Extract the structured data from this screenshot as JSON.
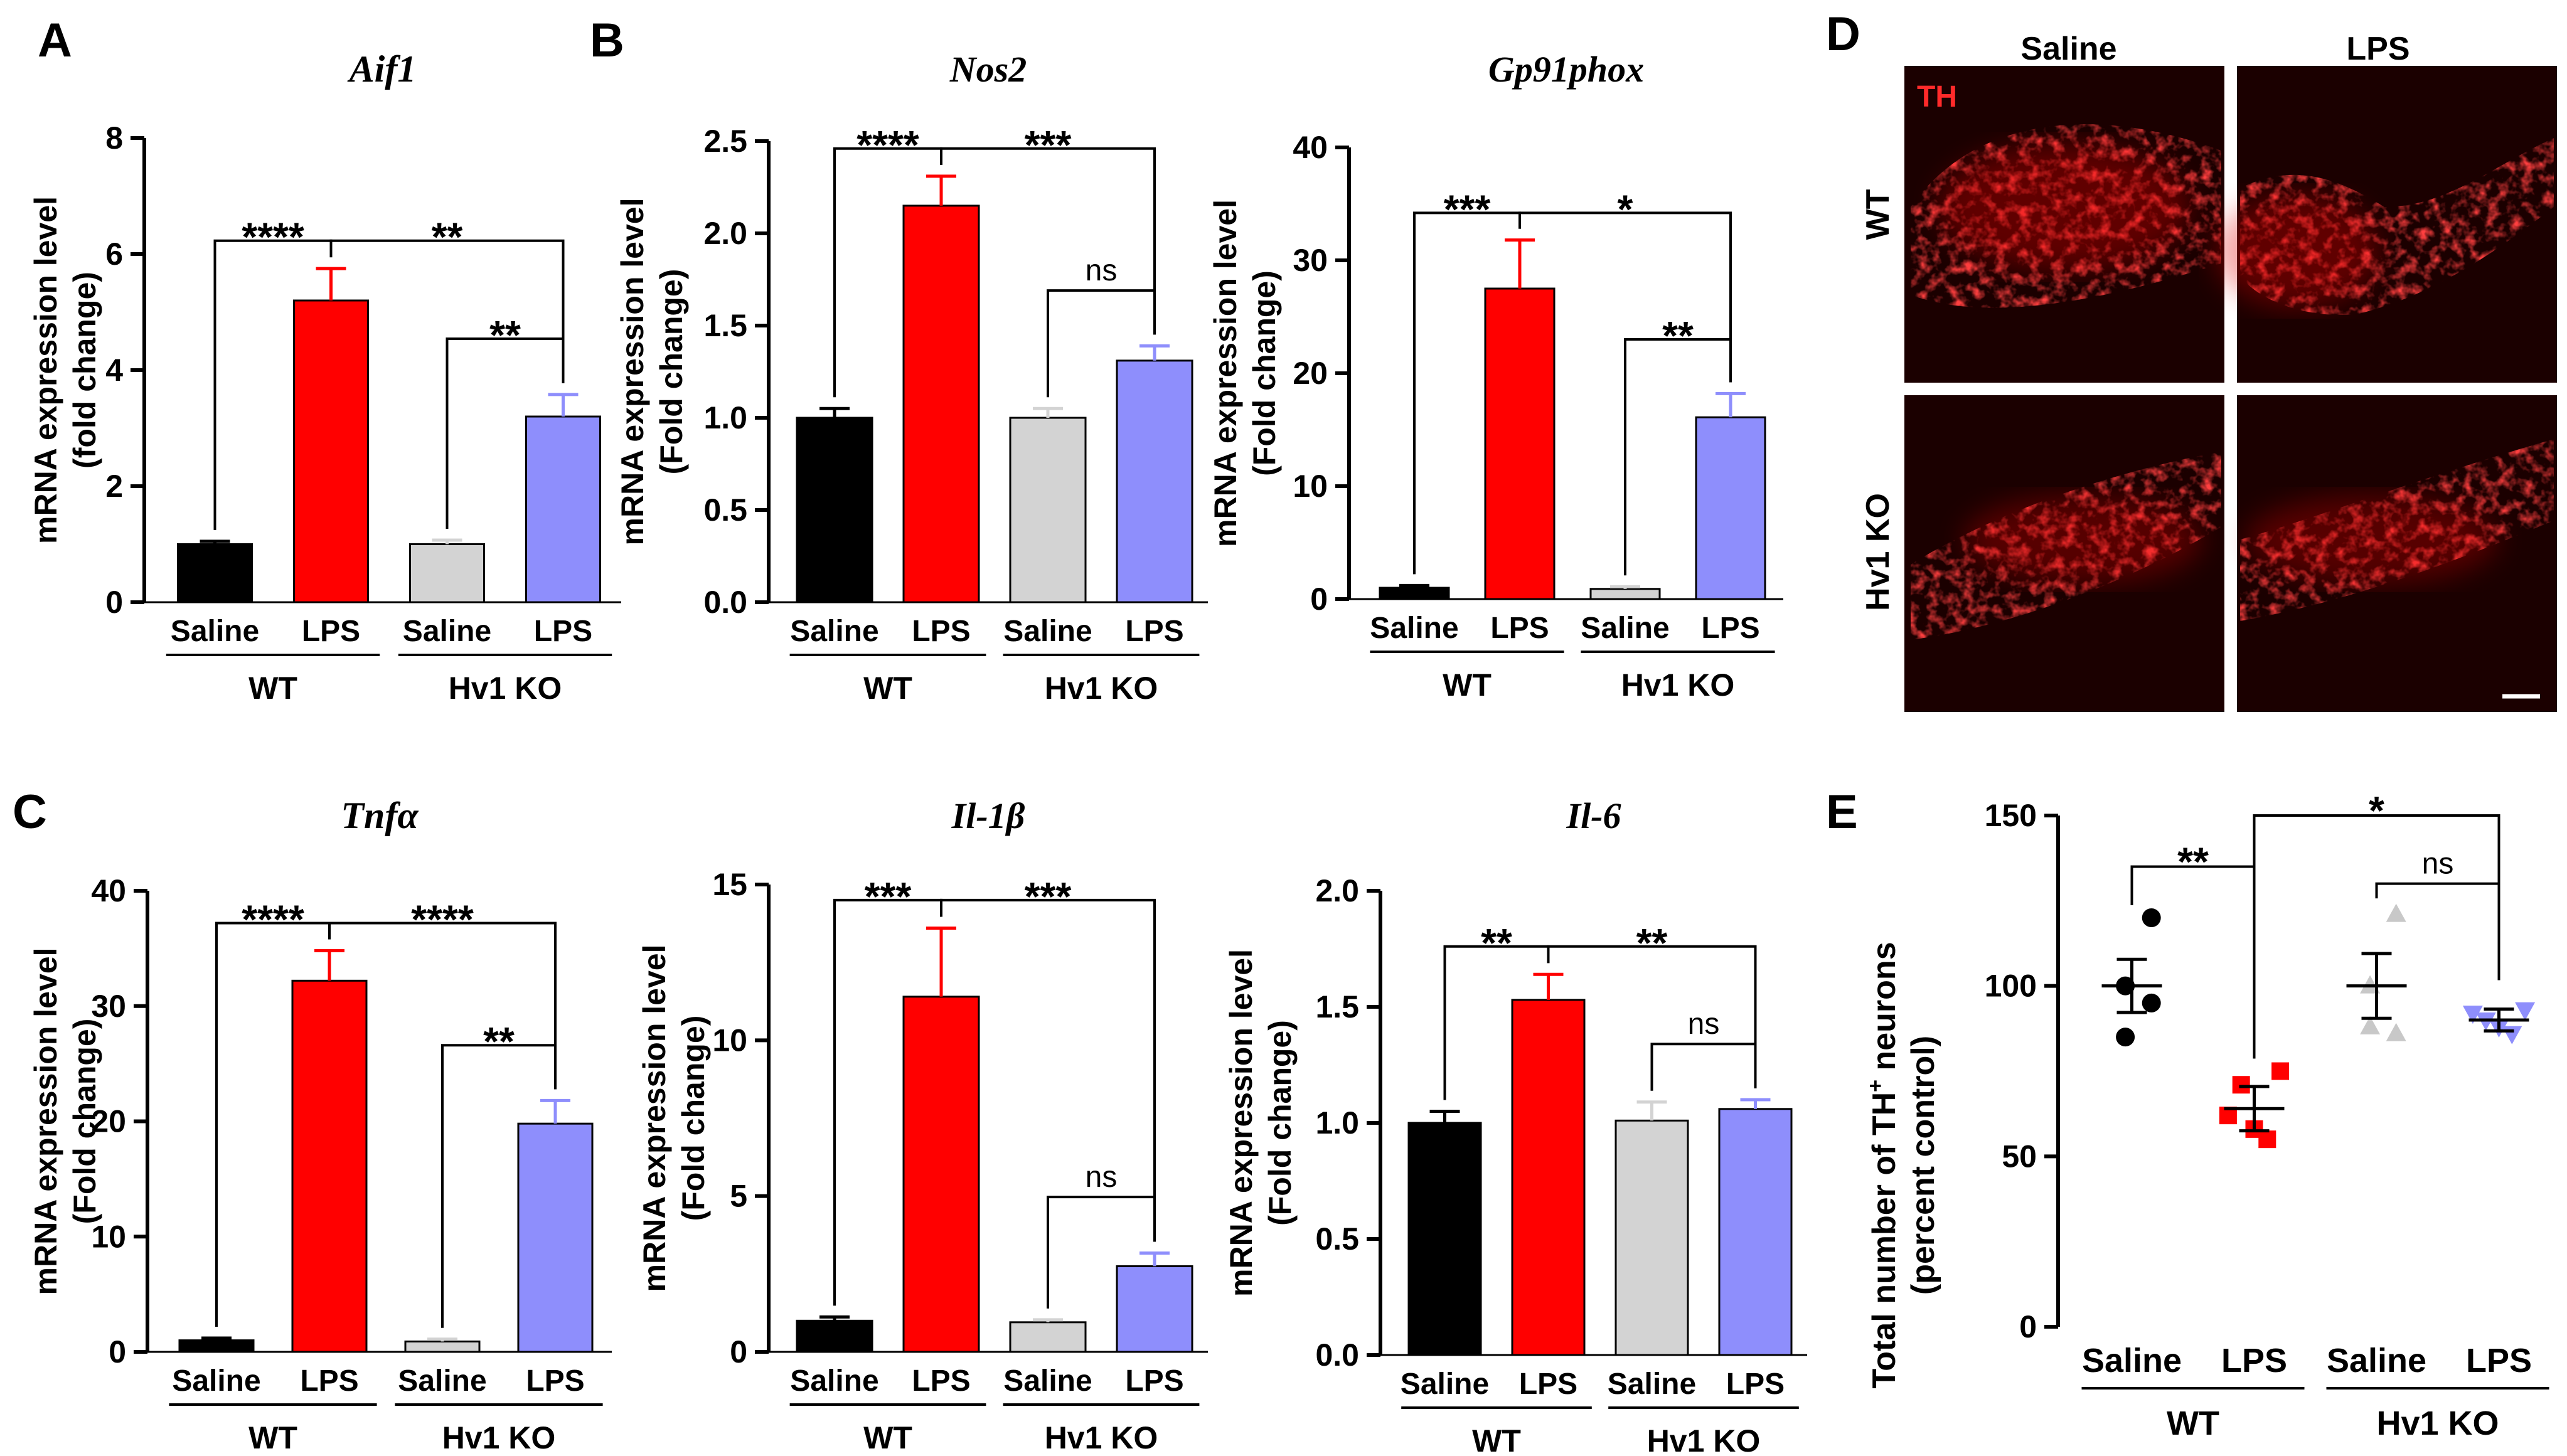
{
  "panel_labels": [
    "A",
    "B",
    "C",
    "D",
    "E"
  ],
  "colors": {
    "wt_saline": "#000000",
    "wt_lps": "#ff0000",
    "ko_saline": "#d3d3d3",
    "ko_lps": "#8e8efc",
    "scatter_ko_saline": "#c8c8c8",
    "scatter_ko_lps": "#8e8efc",
    "micro_label": "#ff2a2a"
  },
  "chart_data": [
    {
      "id": "aif1",
      "panel": "A",
      "type": "bar",
      "title": "Aif1",
      "ylabel": [
        "mRNA expression level",
        "(fold change)"
      ],
      "categories": [
        "Saline",
        "LPS",
        "Saline",
        "LPS"
      ],
      "groups": [
        "WT",
        "Hv1 KO"
      ],
      "values": [
        1.0,
        5.2,
        1.0,
        3.2
      ],
      "errors": [
        0.05,
        0.55,
        0.07,
        0.38
      ],
      "ylim": [
        0,
        8
      ],
      "yticks": [
        0,
        2,
        4,
        6,
        8
      ],
      "tick_labels": [
        "0",
        "2",
        "4",
        "6",
        "8"
      ],
      "sig": [
        {
          "from": 0,
          "to": 1,
          "label": "****"
        },
        {
          "from": 1,
          "to": 3,
          "label": "**"
        },
        {
          "from": 2,
          "to": 3,
          "label": "**"
        }
      ]
    },
    {
      "id": "nos2",
      "panel": "B",
      "type": "bar",
      "title": "Nos2",
      "ylabel": [
        "mRNA expression level",
        "(Fold change)"
      ],
      "categories": [
        "Saline",
        "LPS",
        "Saline",
        "LPS"
      ],
      "groups": [
        "WT",
        "Hv1 KO"
      ],
      "values": [
        1.0,
        2.15,
        1.0,
        1.31
      ],
      "errors": [
        0.05,
        0.16,
        0.05,
        0.08
      ],
      "ylim": [
        0,
        2.5
      ],
      "yticks": [
        0,
        0.5,
        1,
        1.5,
        2,
        2.5
      ],
      "tick_labels": [
        "0.0",
        "0.5",
        "1.0",
        "1.5",
        "2.0",
        "2.5"
      ],
      "sig": [
        {
          "from": 0,
          "to": 1,
          "label": "****"
        },
        {
          "from": 1,
          "to": 3,
          "label": "***"
        },
        {
          "from": 2,
          "to": 3,
          "label": "ns"
        }
      ]
    },
    {
      "id": "gp91phox",
      "panel": "",
      "type": "bar",
      "title": "Gp91phox",
      "ylabel": [
        "mRNA expression level",
        "(Fold change)"
      ],
      "categories": [
        "Saline",
        "LPS",
        "Saline",
        "LPS"
      ],
      "groups": [
        "WT",
        "Hv1 KO"
      ],
      "values": [
        1.0,
        27.5,
        0.9,
        16.1
      ],
      "errors": [
        0.2,
        4.3,
        0.2,
        2.1
      ],
      "ylim": [
        0,
        40
      ],
      "yticks": [
        0,
        10,
        20,
        30,
        40
      ],
      "tick_labels": [
        "0",
        "10",
        "20",
        "30",
        "40"
      ],
      "sig": [
        {
          "from": 0,
          "to": 1,
          "label": "***"
        },
        {
          "from": 1,
          "to": 3,
          "label": "*"
        },
        {
          "from": 2,
          "to": 3,
          "label": "**"
        }
      ]
    },
    {
      "id": "tnfa",
      "panel": "C",
      "type": "bar",
      "title": "Tnfα",
      "ylabel": [
        "mRNA expression level",
        "(Fold change)"
      ],
      "categories": [
        "Saline",
        "LPS",
        "Saline",
        "LPS"
      ],
      "groups": [
        "WT",
        "Hv1 KO"
      ],
      "values": [
        1.0,
        32.2,
        0.9,
        19.8
      ],
      "errors": [
        0.2,
        2.6,
        0.2,
        2.0
      ],
      "ylim": [
        0,
        40
      ],
      "yticks": [
        0,
        10,
        20,
        30,
        40
      ],
      "tick_labels": [
        "0",
        "10",
        "20",
        "30",
        "40"
      ],
      "sig": [
        {
          "from": 0,
          "to": 1,
          "label": "****"
        },
        {
          "from": 1,
          "to": 3,
          "label": "****"
        },
        {
          "from": 2,
          "to": 3,
          "label": "**"
        }
      ]
    },
    {
      "id": "il1b",
      "panel": "",
      "type": "bar",
      "title": "Il-1β",
      "ylabel": [
        "mRNA expression level",
        "(Fold change)"
      ],
      "categories": [
        "Saline",
        "LPS",
        "Saline",
        "LPS"
      ],
      "groups": [
        "WT",
        "Hv1 KO"
      ],
      "values": [
        1.0,
        11.4,
        0.95,
        2.75
      ],
      "errors": [
        0.12,
        2.2,
        0.08,
        0.42
      ],
      "ylim": [
        0,
        15
      ],
      "yticks": [
        0,
        5,
        10,
        15
      ],
      "tick_labels": [
        "0",
        "5",
        "10",
        "15"
      ],
      "sig": [
        {
          "from": 0,
          "to": 1,
          "label": "***"
        },
        {
          "from": 1,
          "to": 3,
          "label": "***"
        },
        {
          "from": 2,
          "to": 3,
          "label": "ns"
        }
      ]
    },
    {
      "id": "il6",
      "panel": "",
      "type": "bar",
      "title": "Il-6",
      "ylabel": [
        "mRNA expression level",
        "(Fold change)"
      ],
      "categories": [
        "Saline",
        "LPS",
        "Saline",
        "LPS"
      ],
      "groups": [
        "WT",
        "Hv1 KO"
      ],
      "values": [
        1.0,
        1.53,
        1.01,
        1.06
      ],
      "errors": [
        0.05,
        0.11,
        0.08,
        0.04
      ],
      "ylim": [
        0,
        2
      ],
      "yticks": [
        0,
        0.5,
        1,
        1.5,
        2
      ],
      "tick_labels": [
        "0.0",
        "0.5",
        "1.0",
        "1.5",
        "2.0"
      ],
      "sig": [
        {
          "from": 0,
          "to": 1,
          "label": "**"
        },
        {
          "from": 1,
          "to": 3,
          "label": "**"
        },
        {
          "from": 2,
          "to": 3,
          "label": "ns"
        }
      ]
    },
    {
      "id": "th_neurons",
      "panel": "E",
      "type": "scatter",
      "ylabel": [
        "Total number of TH",
        "+",
        " neurons",
        "(percent control)"
      ],
      "categories": [
        "Saline",
        "LPS",
        "Saline",
        "LPS"
      ],
      "groups": [
        "WT",
        "Hv1 KO"
      ],
      "points": [
        [
          120,
          100,
          85,
          95
        ],
        [
          75,
          71,
          58,
          55,
          62
        ],
        [
          121,
          100,
          88,
          86
        ],
        [
          93,
          90,
          88,
          86,
          92
        ]
      ],
      "markers": [
        "circle",
        "square",
        "triangle-up",
        "triangle-down"
      ],
      "means": [
        100,
        64,
        100,
        90
      ],
      "sems": [
        7.8,
        6.5,
        9.5,
        3.2
      ],
      "ylim": [
        0,
        150
      ],
      "yticks": [
        0,
        50,
        100,
        150
      ],
      "tick_labels": [
        "0",
        "50",
        "100",
        "150"
      ],
      "sig": [
        {
          "from": 0,
          "to": 1,
          "label": "**"
        },
        {
          "from": 1,
          "to": 3,
          "label": "*"
        },
        {
          "from": 2,
          "to": 3,
          "label": "ns"
        }
      ]
    }
  ],
  "micrographs": {
    "stain": "TH",
    "columns": [
      "Saline",
      "LPS"
    ],
    "rows": [
      "WT",
      "Hv1 KO"
    ]
  }
}
